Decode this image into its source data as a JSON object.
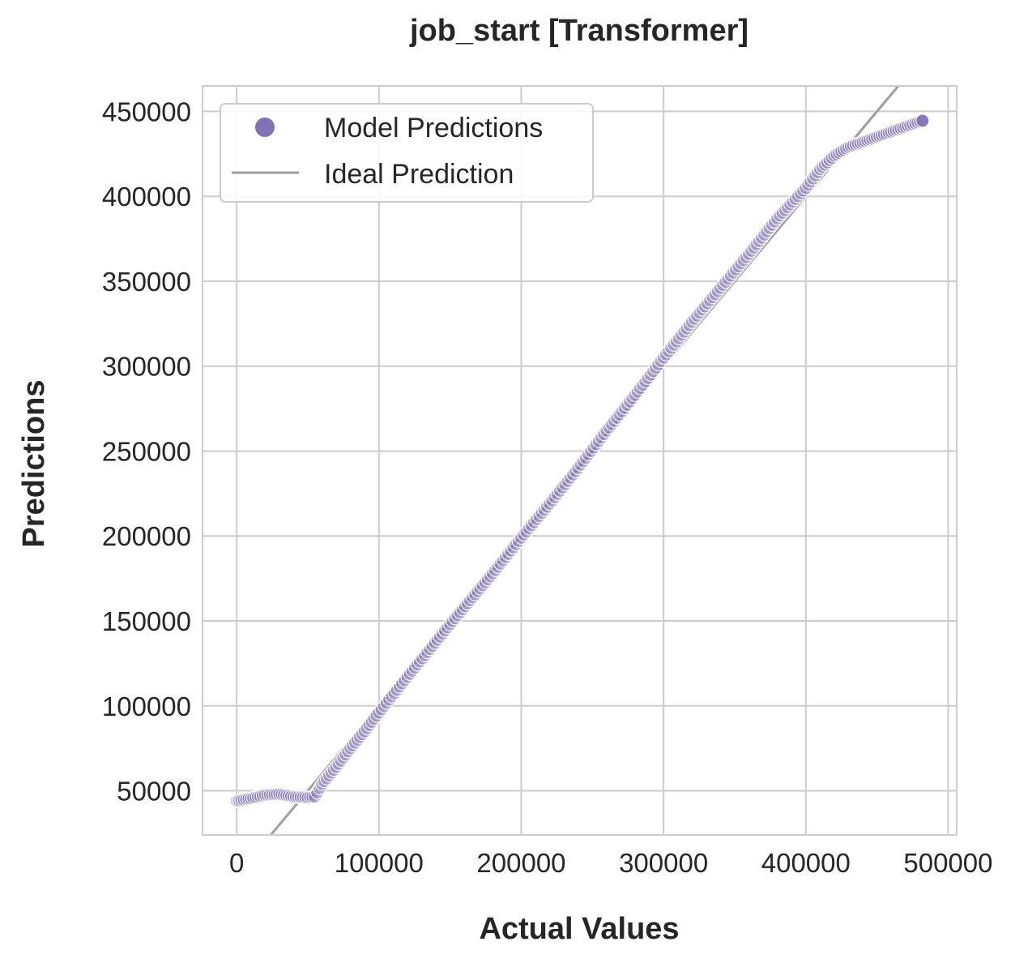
{
  "chart_data": {
    "type": "scatter",
    "title": "job_start [Transformer]",
    "xlabel": "Actual Values",
    "ylabel": "Predictions",
    "xlim": [
      -24000,
      506000
    ],
    "ylim": [
      24000,
      465000
    ],
    "xticks": [
      0,
      100000,
      200000,
      300000,
      400000,
      500000
    ],
    "xtick_labels": [
      "0",
      "100000",
      "200000",
      "300000",
      "400000",
      "500000"
    ],
    "yticks": [
      50000,
      100000,
      150000,
      200000,
      250000,
      300000,
      350000,
      400000,
      450000
    ],
    "ytick_labels": [
      "50000",
      "100000",
      "150000",
      "200000",
      "250000",
      "300000",
      "350000",
      "400000",
      "450000"
    ],
    "grid": true,
    "legend_position": "upper-left",
    "series": [
      {
        "name": "Model Predictions",
        "kind": "scatter",
        "color": "#8172b3",
        "points": [
          [
            0,
            44000
          ],
          [
            10000,
            45500
          ],
          [
            20000,
            47500
          ],
          [
            30000,
            48000
          ],
          [
            40000,
            46500
          ],
          [
            50000,
            46000
          ],
          [
            55000,
            46500
          ],
          [
            60000,
            54000
          ],
          [
            70000,
            64000
          ],
          [
            80000,
            75000
          ],
          [
            90000,
            85000
          ],
          [
            100000,
            96000
          ],
          [
            120000,
            117000
          ],
          [
            150000,
            148000
          ],
          [
            180000,
            178000
          ],
          [
            200000,
            199000
          ],
          [
            220000,
            219000
          ],
          [
            240000,
            240000
          ],
          [
            260000,
            262000
          ],
          [
            280000,
            283000
          ],
          [
            300000,
            305000
          ],
          [
            320000,
            326000
          ],
          [
            340000,
            346000
          ],
          [
            360000,
            366000
          ],
          [
            380000,
            387000
          ],
          [
            400000,
            405000
          ],
          [
            410000,
            416000
          ],
          [
            420000,
            424000
          ],
          [
            430000,
            429000
          ],
          [
            440000,
            432000
          ],
          [
            450000,
            435000
          ],
          [
            460000,
            438000
          ],
          [
            470000,
            441000
          ],
          [
            482000,
            444500
          ]
        ]
      },
      {
        "name": "Ideal Prediction",
        "kind": "line",
        "color": "#9e9e9e",
        "points": [
          [
            24000,
            24000
          ],
          [
            465000,
            465000
          ]
        ]
      }
    ],
    "colors": {
      "grid": "#cccccc",
      "spine": "#cccccc",
      "point_edge": "#ffffff"
    }
  }
}
